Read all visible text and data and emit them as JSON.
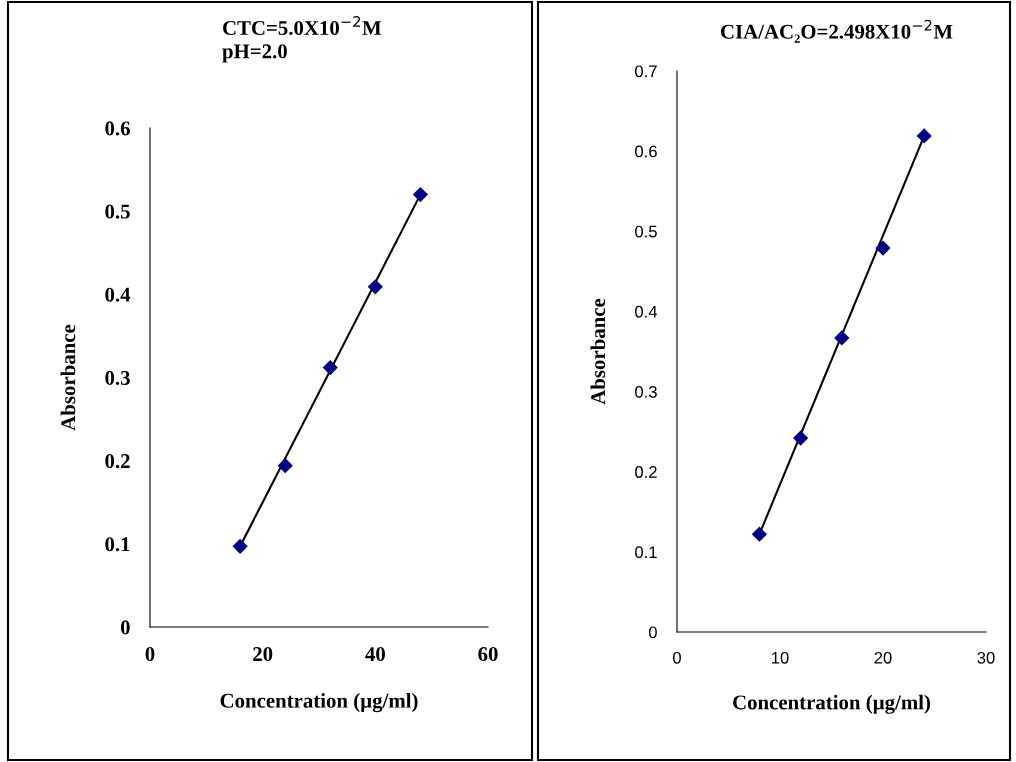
{
  "chart_data": [
    {
      "type": "scatter",
      "title": "CTC=5.0X10$^{−2}$M\npH=2.0",
      "xlabel": "Concentration (µg/ml)",
      "ylabel": "Absorbance",
      "grid": false,
      "legend": false,
      "xlim": [
        0,
        60
      ],
      "xticks": [
        0,
        20,
        40,
        60
      ],
      "ylim": [
        0,
        0.6
      ],
      "yticks": [
        0,
        0.1,
        0.2,
        0.3,
        0.4,
        0.5,
        0.6
      ],
      "series": [
        {
          "color": "#000080",
          "marker": "diamond",
          "x": [
            16,
            24,
            32,
            40,
            48
          ],
          "values": [
            0.097,
            0.194,
            0.312,
            0.409,
            0.52
          ]
        },
        {
          "type": "line",
          "marker": "none",
          "color": "#000000",
          "x": [
            16,
            48
          ],
          "values": [
            0.097,
            0.52
          ]
        }
      ]
    },
    {
      "type": "scatter",
      "title": "CIA/AC₂O=2.498X10$^{−2}$M",
      "xlabel": "Concentration (µg/ml)",
      "ylabel": "Absorbance",
      "grid": false,
      "legend": false,
      "xlim": [
        0,
        30
      ],
      "xticks": [
        0,
        10,
        20,
        30
      ],
      "ylim": [
        0,
        0.7
      ],
      "yticks": [
        0,
        0.1,
        0.2,
        0.3,
        0.4,
        0.5,
        0.6,
        0.7
      ],
      "series": [
        {
          "color": "#000080",
          "marker": "diamond",
          "x": [
            8,
            12,
            16,
            20,
            24
          ],
          "values": [
            0.122,
            0.242,
            0.367,
            0.479,
            0.619
          ]
        },
        {
          "type": "line",
          "marker": "none",
          "color": "#000000",
          "x": [
            8,
            24
          ],
          "values": [
            0.122,
            0.619
          ]
        }
      ]
    }
  ]
}
